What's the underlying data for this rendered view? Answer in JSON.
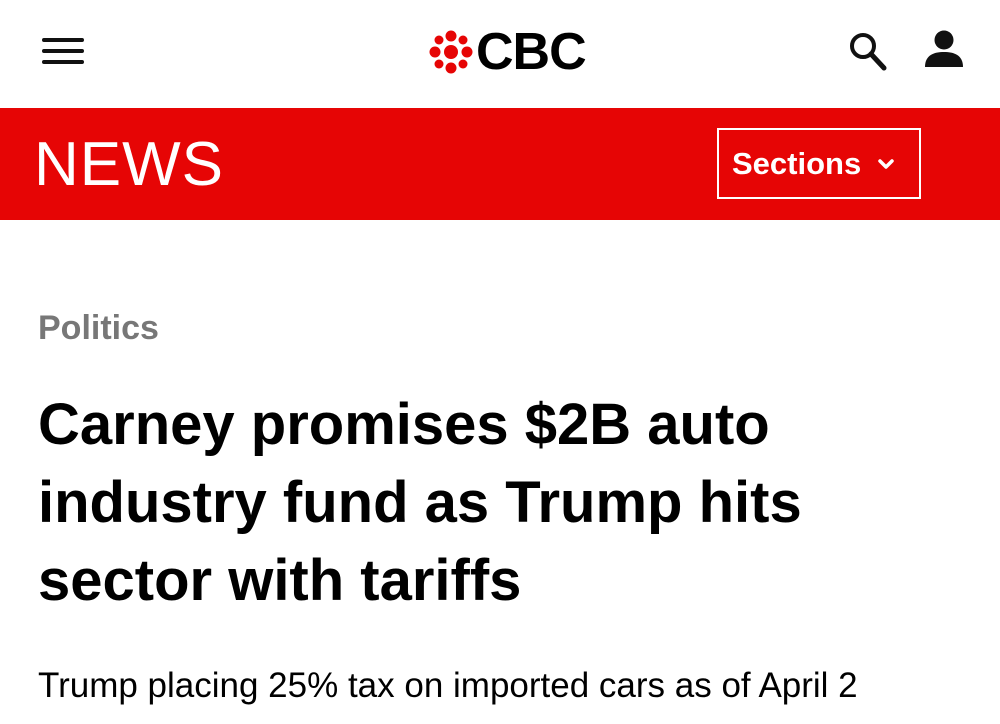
{
  "header": {
    "logo_text": "CBC"
  },
  "news_bar": {
    "title": "NEWS",
    "sections_button": "Sections"
  },
  "article": {
    "category": "Politics",
    "headline_lines": [
      "Carney promises $2B auto",
      "industry fund as Trump hits",
      "sector with tariffs"
    ],
    "subheading": "Trump placing 25% tax on imported cars as of April 2"
  }
}
